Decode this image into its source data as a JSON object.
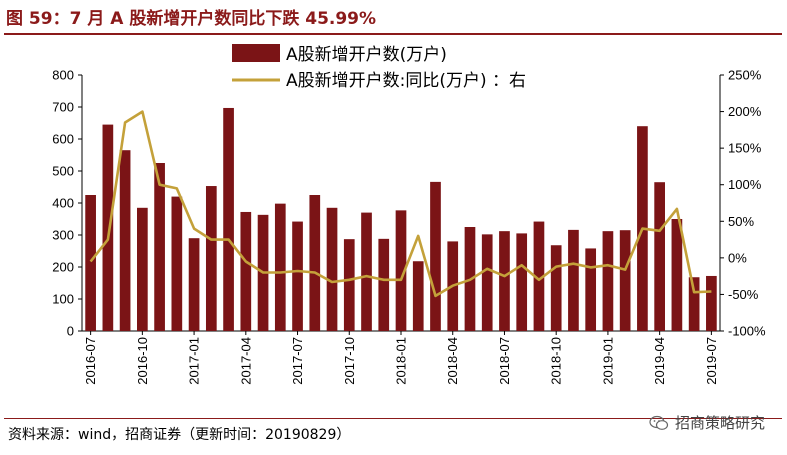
{
  "header": {
    "title": "图 59：7 月 A 股新增开户数同比下跌 45.99%"
  },
  "footer": {
    "source": "资料来源：wind，招商证券（更新时间：20190829）",
    "watermark": "招商策略研究"
  },
  "icons": {
    "watermark_icon": "wechat-icon"
  },
  "colors": {
    "bar": "#7b1416",
    "line": "#c4a13a",
    "title": "#8b1a1a"
  },
  "chart_data": {
    "type": "bar+line",
    "legend_position": "top-center",
    "grid": false,
    "x": [
      "2016-07",
      "2016-08",
      "2016-09",
      "2016-10",
      "2016-11",
      "2016-12",
      "2017-01",
      "2017-02",
      "2017-03",
      "2017-04",
      "2017-05",
      "2017-06",
      "2017-07",
      "2017-08",
      "2017-09",
      "2017-10",
      "2017-11",
      "2017-12",
      "2018-01",
      "2018-02",
      "2018-03",
      "2018-04",
      "2018-05",
      "2018-06",
      "2018-07",
      "2018-08",
      "2018-09",
      "2018-10",
      "2018-11",
      "2018-12",
      "2019-01",
      "2019-02",
      "2019-03",
      "2019-04",
      "2019-05",
      "2019-06",
      "2019-07"
    ],
    "x_tick_labels": [
      "2016-07",
      "2016-10",
      "2017-01",
      "2017-04",
      "2017-07",
      "2017-10",
      "2018-01",
      "2018-04",
      "2018-07",
      "2018-10",
      "2019-01",
      "2019-04",
      "2019-07"
    ],
    "left_axis": {
      "ylim": [
        0,
        800
      ],
      "ticks": [
        "0",
        "100",
        "200",
        "300",
        "400",
        "500",
        "600",
        "700",
        "800"
      ]
    },
    "right_axis": {
      "ylim": [
        -100,
        250
      ],
      "ticks": [
        "-100%",
        "-50%",
        "0%",
        "50%",
        "100%",
        "150%",
        "200%",
        "250%"
      ]
    },
    "series": [
      {
        "name": "A股新增开户数(万户)",
        "type": "bar",
        "axis": "left",
        "values": [
          425,
          645,
          565,
          385,
          525,
          420,
          290,
          453,
          697,
          372,
          363,
          398,
          342,
          425,
          385,
          287,
          370,
          288,
          377,
          218,
          466,
          280,
          325,
          302,
          312,
          305,
          342,
          268,
          316,
          258,
          312,
          315,
          640,
          465,
          350,
          168,
          172
        ]
      },
      {
        "name": "A股新增开户数:同比(万户)  ：右",
        "type": "line",
        "axis": "right",
        "values": [
          -5,
          25,
          185,
          200,
          100,
          95,
          40,
          25,
          25,
          -5,
          -20,
          -20,
          -18,
          -20,
          -33,
          -30,
          -25,
          -30,
          -30,
          30,
          -52,
          -38,
          -30,
          -15,
          -25,
          -10,
          -30,
          -12,
          -8,
          -13,
          -10,
          -16,
          40,
          37,
          67,
          -47,
          -46
        ]
      }
    ]
  }
}
